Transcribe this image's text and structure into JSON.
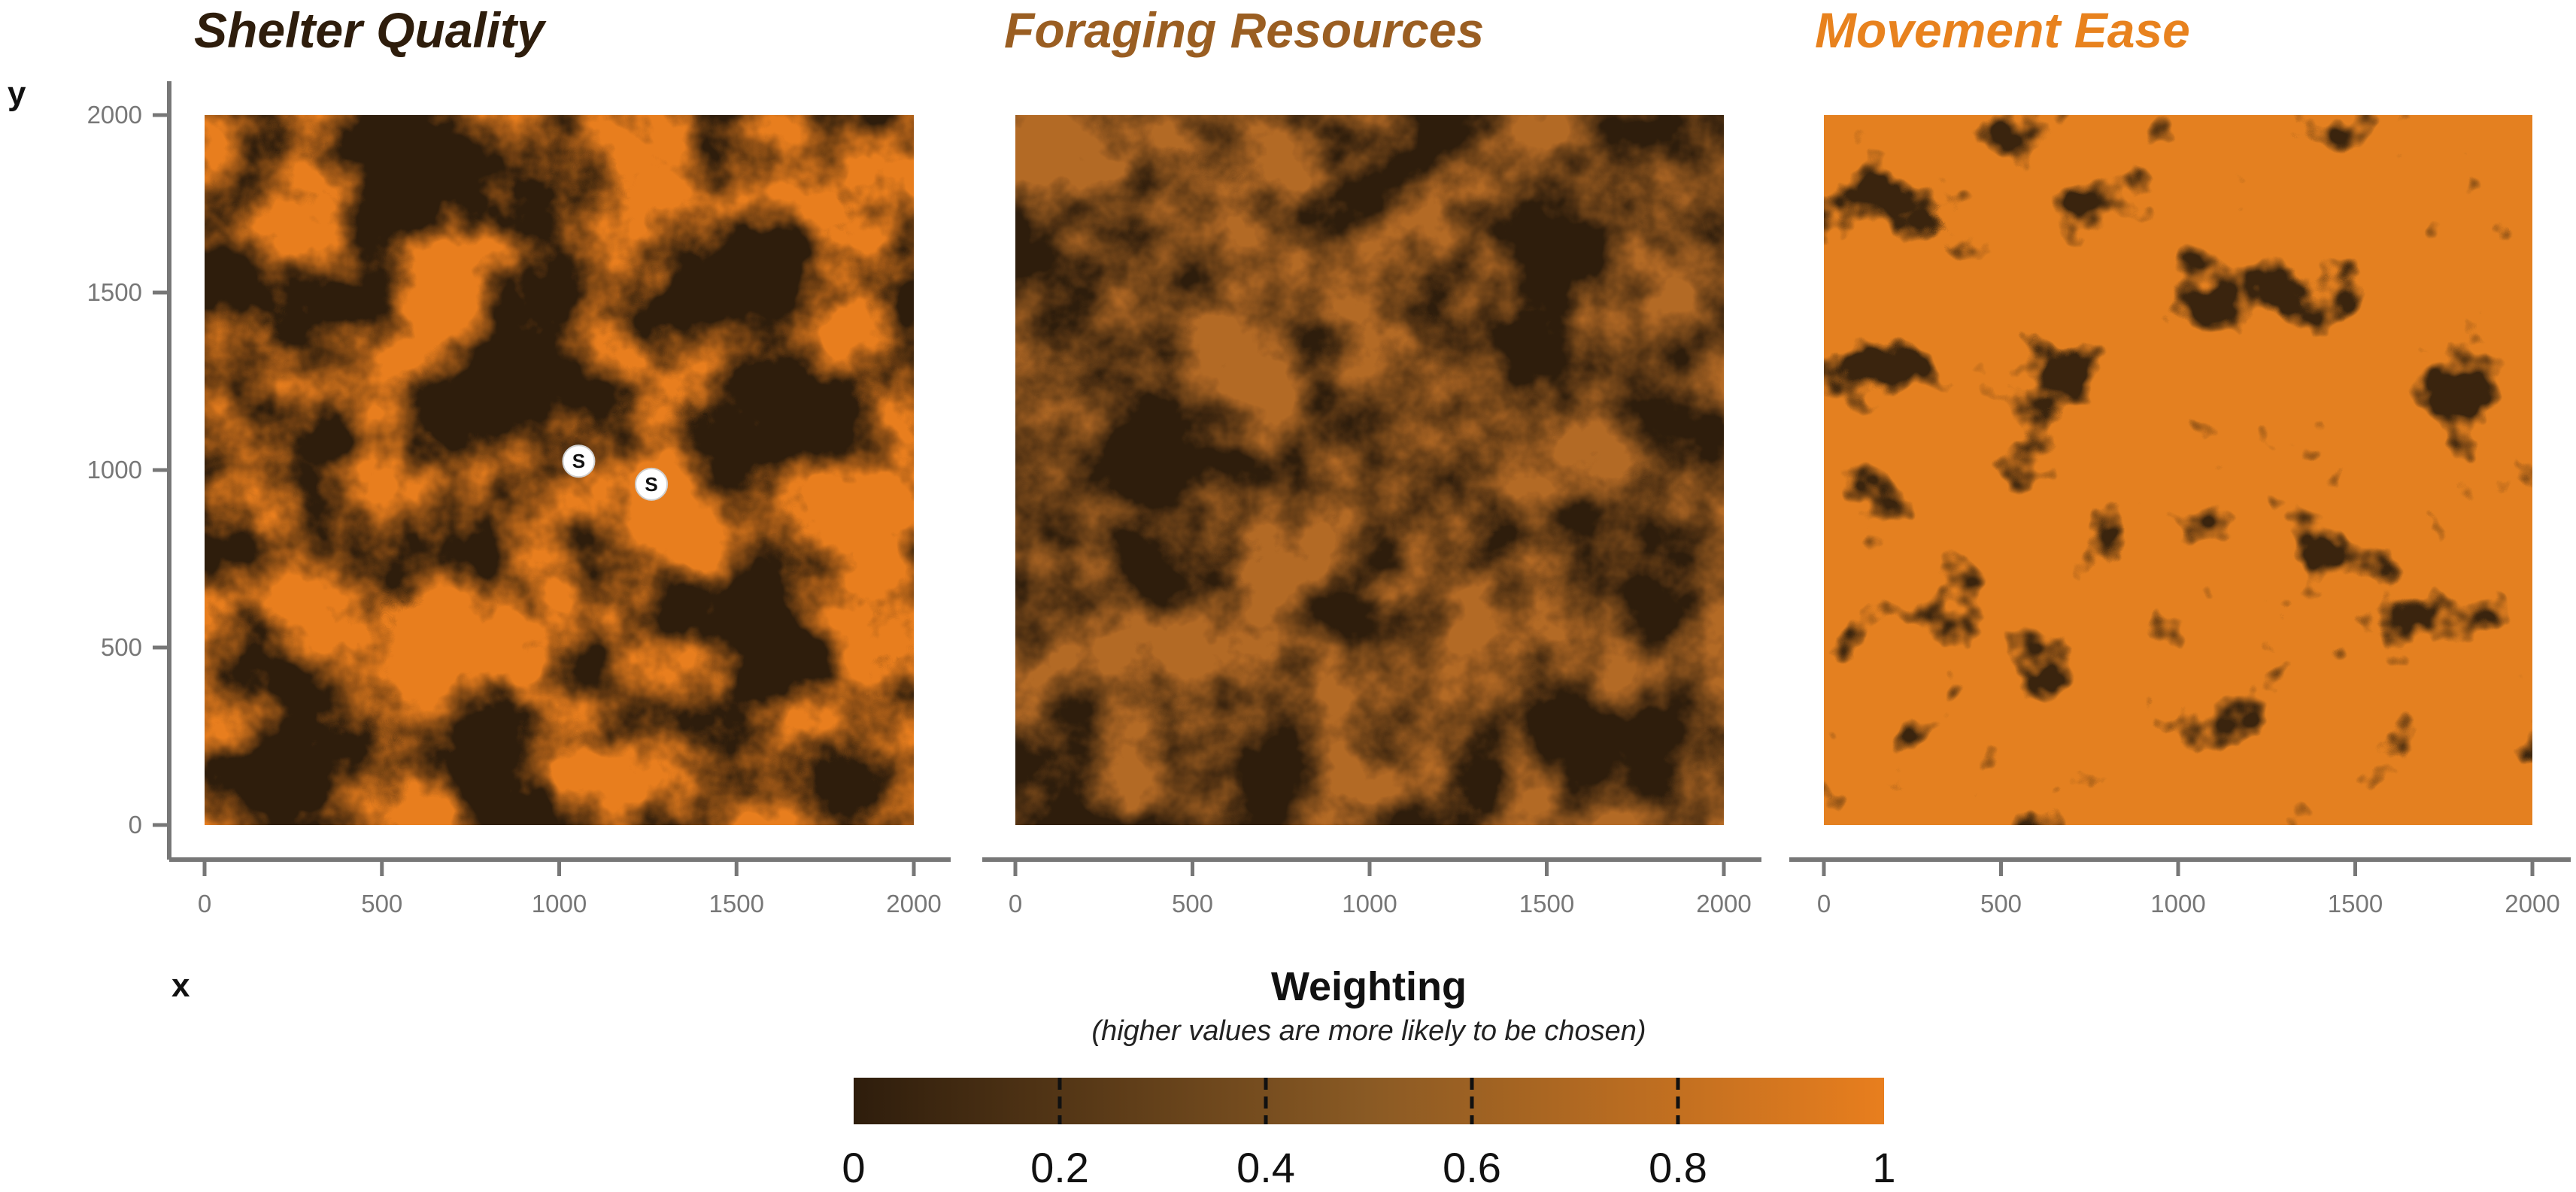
{
  "axes": {
    "y_letter": "y",
    "x_letter": "x"
  },
  "colors": {
    "low": "#2e1d0c",
    "mid": "#8a5a24",
    "high": "#e87e1e",
    "axis": "#777777"
  },
  "chart_data": [
    {
      "type": "heatmap",
      "title": "Shelter Quality",
      "title_color": "#2e1d0c",
      "xlim": [
        0,
        2000
      ],
      "ylim": [
        0,
        2000
      ],
      "x_ticks": [
        0,
        500,
        1000,
        1500,
        2000
      ],
      "y_ticks": [
        0,
        500,
        1000,
        1500,
        2000
      ],
      "points": [
        {
          "label": "S",
          "x": 1055,
          "y": 1025
        },
        {
          "label": "S",
          "x": 1260,
          "y": 960
        }
      ]
    },
    {
      "type": "heatmap",
      "title": "Foraging Resources",
      "title_color": "#9a5e22",
      "xlim": [
        0,
        2000
      ],
      "ylim": [
        0,
        2000
      ],
      "x_ticks": [
        0,
        500,
        1000,
        1500,
        2000
      ],
      "points": []
    },
    {
      "type": "heatmap",
      "title": "Movement Ease",
      "title_color": "#e8821e",
      "xlim": [
        0,
        2000
      ],
      "ylim": [
        0,
        2000
      ],
      "x_ticks": [
        0,
        500,
        1000,
        1500,
        2000
      ],
      "points": []
    }
  ],
  "legend": {
    "title": "Weighting",
    "subtitle": "(higher values are more likely to be chosen)",
    "range": [
      0,
      1
    ],
    "ticks": [
      "0",
      "0.2",
      "0.4",
      "0.6",
      "0.8",
      "1"
    ]
  }
}
